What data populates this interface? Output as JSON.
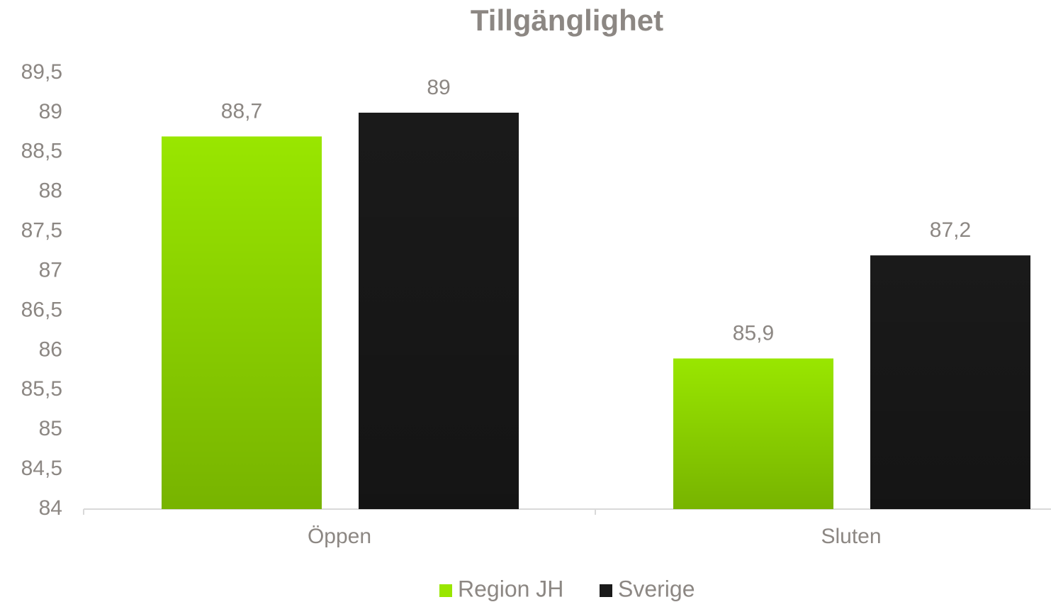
{
  "chart_data": {
    "type": "bar",
    "title": "Tillgänglighet",
    "categories": [
      "Öppen",
      "Sluten"
    ],
    "series": [
      {
        "name": "Region JH",
        "color": "#99e600",
        "values": [
          88.7,
          85.9
        ],
        "value_labels": [
          "88,7",
          "85,9"
        ]
      },
      {
        "name": "Sverige",
        "color": "#1a1a1a",
        "values": [
          89,
          87.2
        ],
        "value_labels": [
          "89",
          "87,2"
        ]
      }
    ],
    "ylim": [
      84,
      89.5
    ],
    "yticks": [
      84,
      {
        "value": 84.5,
        "label": "84,5"
      },
      85,
      {
        "value": 85.5,
        "label": "85,5"
      },
      86,
      {
        "value": 86.5,
        "label": "86,5"
      },
      87,
      {
        "value": 87.5,
        "label": "87,5"
      },
      88,
      {
        "value": 88.5,
        "label": "88,5"
      },
      89,
      {
        "value": 89.5,
        "label": "89,5"
      }
    ],
    "grid": false,
    "legend": "bottom"
  }
}
